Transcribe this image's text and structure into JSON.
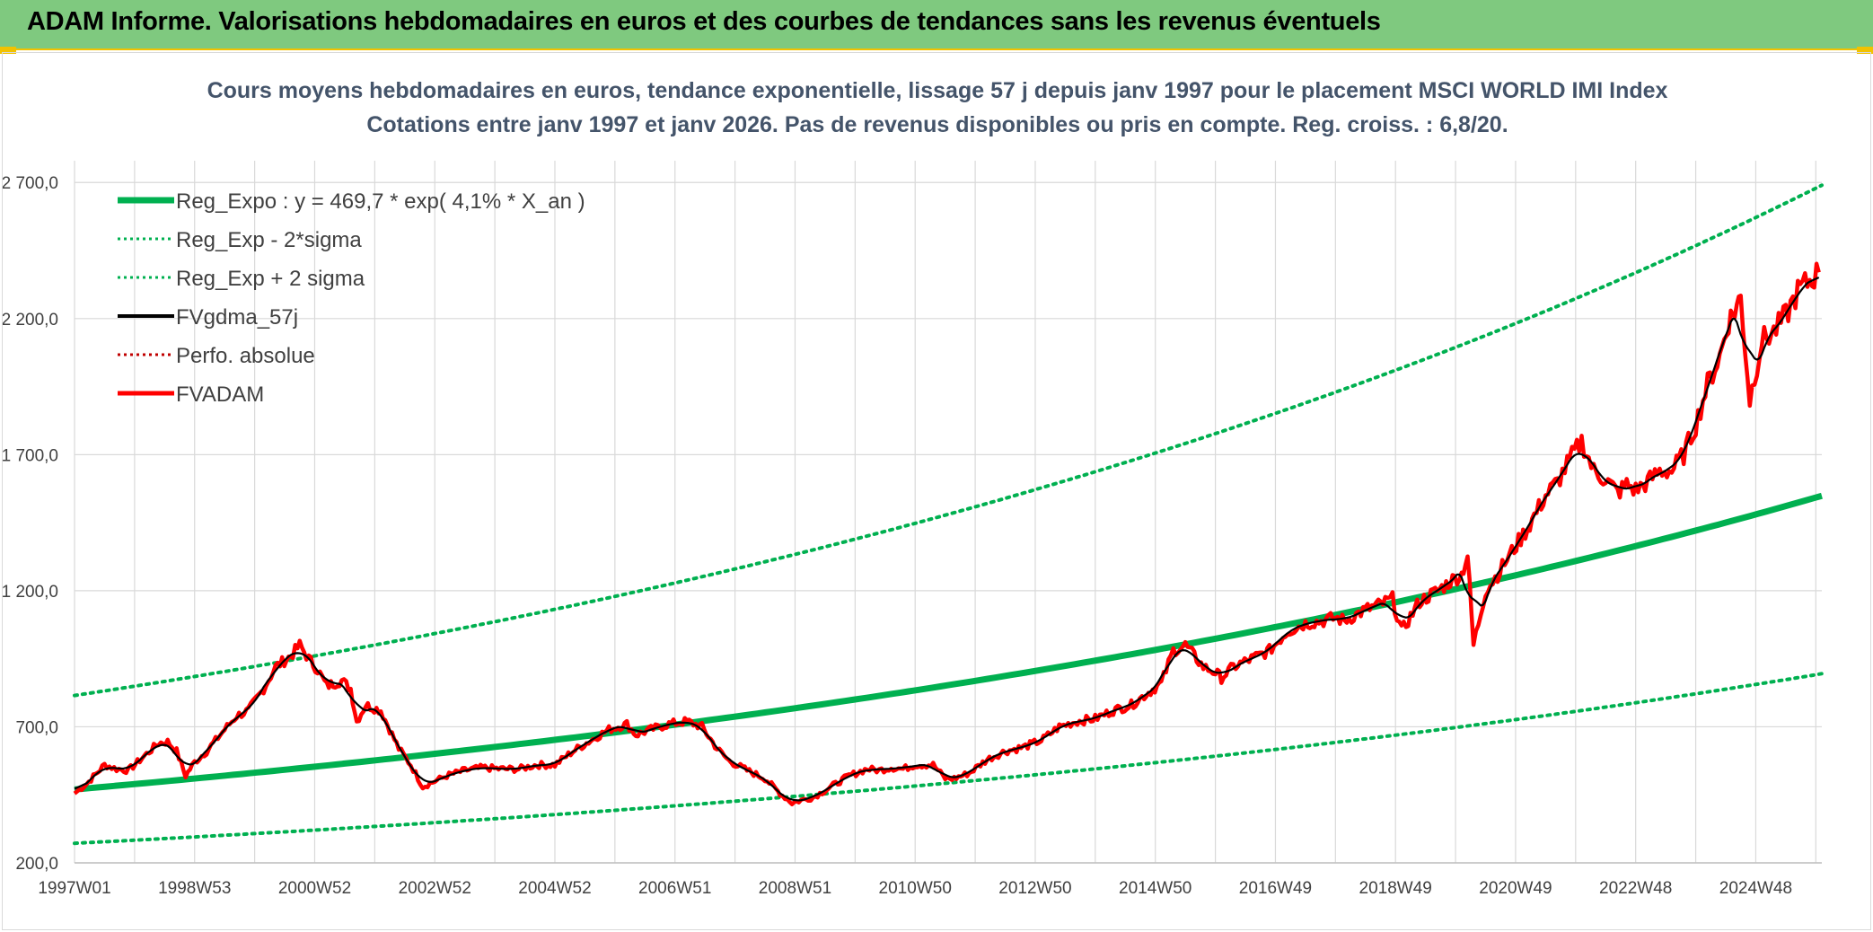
{
  "banner": {
    "title": "ADAM Informe. Valorisations hebdomadaires en euros et des courbes de tendances sans les revenus éventuels"
  },
  "colors": {
    "banner_bg": "#7fc97f",
    "regression": "#00b050",
    "price": "#ff0000",
    "smoothed": "#000000",
    "perf": "#c00000",
    "grid": "#d9d9d9"
  },
  "chart_data": {
    "type": "line",
    "title_lines": [
      "Cours moyens hebdomadaires en euros, tendance exponentielle, lissage 57 j depuis janv 1997 pour le placement MSCI WORLD IMI Index",
      "Cotations entre janv 1997 et janv 2026. Pas de revenus disponibles ou pris en compte. Reg. croiss. : 6,8/20."
    ],
    "xlabel": "",
    "ylabel": "",
    "x_tick_labels": [
      "1997W01",
      "1998W53",
      "2000W52",
      "2002W52",
      "2004W52",
      "2006W51",
      "2008W51",
      "2010W50",
      "2012W50",
      "2014W50",
      "2016W49",
      "2018W49",
      "2020W49",
      "2022W48",
      "2024W48"
    ],
    "x_tick_years": [
      1997.0,
      1999.0,
      2001.0,
      2003.0,
      2005.0,
      2007.0,
      2009.0,
      2011.0,
      2013.0,
      2015.0,
      2017.0,
      2019.0,
      2021.0,
      2023.0,
      2025.0
    ],
    "x_range_years": [
      1997.0,
      2026.1
    ],
    "y_tick_labels": [
      "200,0",
      "700,0",
      "1 200,0",
      "1 700,0",
      "2 200,0",
      "2 700,0"
    ],
    "y_tick_values": [
      200,
      700,
      1200,
      1700,
      2200,
      2700
    ],
    "ylim": [
      200,
      2780
    ],
    "grid": true,
    "legend_position": "top-left",
    "legend": [
      {
        "label": "Reg_Expo : y = 469,7 * exp( 4,1% *  X_an )",
        "style": "solid-thick",
        "color": "#00b050"
      },
      {
        "label": "Reg_Exp - 2*sigma",
        "style": "dotted",
        "color": "#00b050"
      },
      {
        "label": "Reg_Exp + 2 sigma",
        "style": "dotted",
        "color": "#00b050"
      },
      {
        "label": "FVgdma_57j",
        "style": "solid",
        "color": "#000000"
      },
      {
        "label": "Perfo. absolue",
        "style": "dotted",
        "color": "#c00000"
      },
      {
        "label": "FVADAM",
        "style": "solid-thick",
        "color": "#ff0000"
      }
    ],
    "regression": {
      "a": 469.7,
      "rate": 0.041
    },
    "band_values": {
      "lower_start": 272,
      "lower_end": 895,
      "upper_start": 815,
      "upper_end": 2690
    },
    "price_series": {
      "name": "FVADAM",
      "x": [
        1997.0,
        1997.2,
        1997.5,
        1997.7,
        1997.9,
        1998.2,
        1998.4,
        1998.55,
        1998.7,
        1998.85,
        1999.0,
        1999.2,
        1999.5,
        1999.7,
        1999.9,
        2000.15,
        2000.35,
        2000.6,
        2000.75,
        2000.9,
        2001.05,
        2001.2,
        2001.45,
        2001.6,
        2001.7,
        2001.85,
        2002.1,
        2002.4,
        2002.6,
        2002.8,
        2003.0,
        2003.2,
        2003.5,
        2003.8,
        2004.1,
        2004.4,
        2004.7,
        2005.0,
        2005.3,
        2005.6,
        2005.9,
        2006.2,
        2006.35,
        2006.6,
        2006.9,
        2007.2,
        2007.45,
        2007.7,
        2007.9,
        2008.2,
        2008.5,
        2008.75,
        2008.95,
        2009.1,
        2009.3,
        2009.6,
        2009.9,
        2010.2,
        2010.4,
        2010.6,
        2010.8,
        2011.0,
        2011.3,
        2011.5,
        2011.65,
        2011.9,
        2012.2,
        2012.5,
        2012.8,
        2013.1,
        2013.4,
        2013.7,
        2014.0,
        2014.3,
        2014.6,
        2014.85,
        2015.1,
        2015.3,
        2015.5,
        2015.65,
        2015.8,
        2016.0,
        2016.1,
        2016.3,
        2016.6,
        2016.9,
        2017.2,
        2017.5,
        2017.8,
        2018.0,
        2018.15,
        2018.5,
        2018.75,
        2018.95,
        2019.1,
        2019.4,
        2019.7,
        2019.95,
        2020.1,
        2020.2,
        2020.3,
        2020.5,
        2020.7,
        2020.9,
        2021.2,
        2021.5,
        2021.7,
        2021.9,
        2022.1,
        2022.3,
        2022.5,
        2022.7,
        2022.85,
        2023.0,
        2023.2,
        2023.4,
        2023.6,
        2023.8,
        2024.0,
        2024.2,
        2024.4,
        2024.55,
        2024.65,
        2024.75,
        2024.9,
        2025.1,
        2025.3,
        2025.5,
        2025.7,
        2025.9,
        2026.05
      ],
      "values": [
        455,
        490,
        560,
        545,
        540,
        600,
        640,
        645,
        610,
        520,
        570,
        610,
        690,
        740,
        760,
        840,
        920,
        960,
        1000,
        950,
        910,
        850,
        870,
        840,
        720,
        780,
        760,
        620,
        560,
        480,
        500,
        520,
        540,
        550,
        545,
        545,
        560,
        560,
        610,
        650,
        690,
        710,
        670,
        690,
        710,
        720,
        700,
        620,
        575,
        540,
        510,
        455,
        420,
        430,
        440,
        480,
        520,
        545,
        540,
        550,
        545,
        560,
        560,
        510,
        510,
        530,
        580,
        610,
        625,
        650,
        700,
        720,
        730,
        760,
        780,
        820,
        860,
        980,
        1000,
        960,
        920,
        900,
        880,
        920,
        950,
        980,
        1050,
        1080,
        1090,
        1100,
        1090,
        1130,
        1150,
        1170,
        1050,
        1160,
        1200,
        1240,
        1260,
        1330,
        1000,
        1200,
        1260,
        1330,
        1430,
        1550,
        1600,
        1680,
        1750,
        1640,
        1610,
        1560,
        1590,
        1570,
        1600,
        1640,
        1640,
        1700,
        1810,
        1960,
        2060,
        2190,
        2230,
        2280,
        1900,
        2120,
        2150,
        2210,
        2300,
        2340,
        2370
      ]
    },
    "smoothed_series": {
      "name": "FVgdma_57j",
      "note_window": 3
    }
  }
}
